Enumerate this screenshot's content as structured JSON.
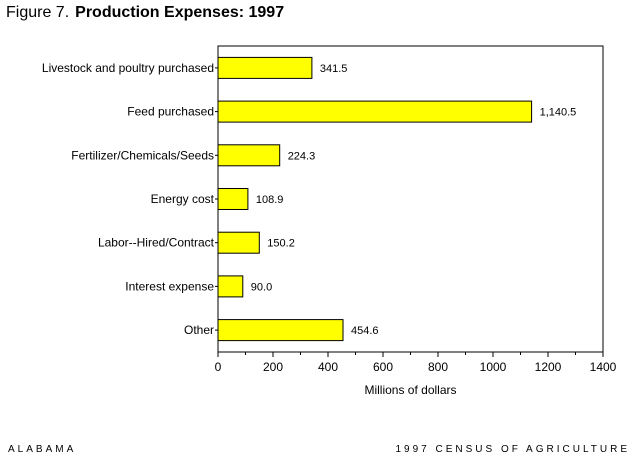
{
  "figure_label": "Figure 7.",
  "title": "Production Expenses: 1997",
  "footer": {
    "left": "ALABAMA",
    "right": "1997 CENSUS OF AGRICULTURE"
  },
  "colors": {
    "bar_fill": "#ffff00",
    "bar_stroke": "#000000"
  },
  "chart_data": {
    "type": "bar",
    "orientation": "horizontal",
    "title": "Production Expenses: 1997",
    "xlabel": "Millions of dollars",
    "ylabel": "",
    "xlim": [
      0,
      1400
    ],
    "xticks": [
      0,
      200,
      400,
      600,
      800,
      1000,
      1200,
      1400
    ],
    "grid": false,
    "categories": [
      "Livestock and poultry purchased",
      "Feed purchased",
      "Fertilizer/Chemicals/Seeds",
      "Energy cost",
      "Labor--Hired/Contract",
      "Interest expense",
      "Other"
    ],
    "values": [
      341.5,
      1140.5,
      224.3,
      108.9,
      150.2,
      90.0,
      454.6
    ],
    "value_labels": [
      "341.5",
      "1,140.5",
      "224.3",
      "108.9",
      "150.2",
      "90.0",
      "454.6"
    ]
  }
}
